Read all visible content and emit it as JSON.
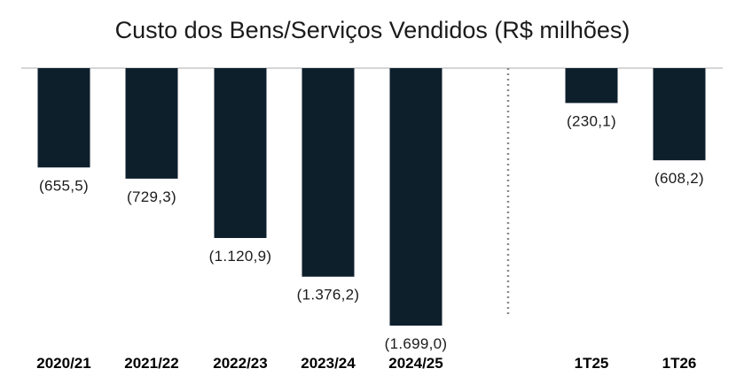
{
  "chart_data": {
    "type": "bar",
    "title": "Custo dos Bens/Serviços Vendidos (R$ milhões)",
    "xlabel": "",
    "ylabel": "",
    "categories": [
      "2020/21",
      "2021/22",
      "2022/23",
      "2023/24",
      "2024/25",
      "1T25",
      "1T26"
    ],
    "values": [
      -655.5,
      -729.3,
      -1120.9,
      -1376.2,
      -1699.0,
      -230.1,
      -608.2
    ],
    "data_labels": [
      "(655,5)",
      "(729,3)",
      "(1.120,9)",
      "(1.376,2)",
      "(1.699,0)",
      "(230,1)",
      "(608,2)"
    ],
    "ylim": [
      -1699.0,
      0
    ],
    "grid": false,
    "legend": "none",
    "separator_after_category": "2024/25",
    "colors": {
      "bar": "#0e1f2c",
      "axis": "#c8c8c8",
      "separator": "#8a8a8a"
    }
  }
}
